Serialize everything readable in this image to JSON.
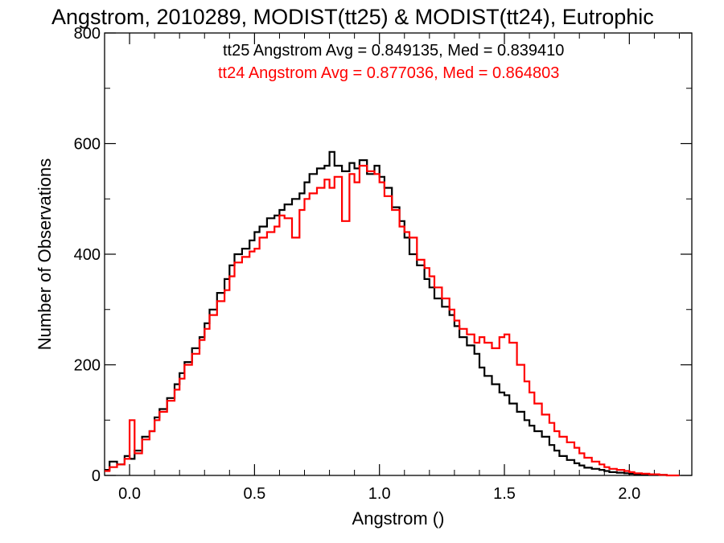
{
  "chart_data": {
    "type": "line",
    "step": true,
    "title": "Angstrom, 2010289, MODIST(tt25) & MODIST(tt24), Eutrophic",
    "xlabel": "Angstrom ()",
    "ylabel": "Number of Observations",
    "xlim": [
      -0.1,
      2.25
    ],
    "ylim": [
      0,
      800
    ],
    "xticks": [
      0.0,
      0.5,
      1.0,
      1.5,
      2.0
    ],
    "xtick_labels": [
      "0.0",
      "0.5",
      "1.0",
      "1.5",
      "2.0"
    ],
    "yticks": [
      0,
      200,
      400,
      600,
      800
    ],
    "ytick_labels": [
      "0",
      "200",
      "400",
      "600",
      "800"
    ],
    "grid": false,
    "annotations": [
      {
        "text": "tt25 Angstrom Avg = 0.849135, Med = 0.839410",
        "color": "#000000"
      },
      {
        "text": "tt24 Angstrom Avg = 0.877036, Med = 0.864803",
        "color": "#ff0000"
      }
    ],
    "series": [
      {
        "color": "#000000",
        "x": [
          -0.1,
          -0.08,
          -0.05,
          -0.02,
          0.0,
          0.02,
          0.05,
          0.08,
          0.1,
          0.12,
          0.15,
          0.18,
          0.2,
          0.22,
          0.25,
          0.28,
          0.3,
          0.32,
          0.35,
          0.38,
          0.4,
          0.42,
          0.45,
          0.48,
          0.5,
          0.52,
          0.55,
          0.58,
          0.6,
          0.62,
          0.65,
          0.68,
          0.7,
          0.72,
          0.75,
          0.78,
          0.8,
          0.82,
          0.85,
          0.88,
          0.9,
          0.92,
          0.95,
          0.98,
          1.0,
          1.02,
          1.05,
          1.08,
          1.1,
          1.12,
          1.15,
          1.18,
          1.2,
          1.22,
          1.25,
          1.28,
          1.3,
          1.32,
          1.35,
          1.38,
          1.4,
          1.42,
          1.45,
          1.48,
          1.5,
          1.52,
          1.55,
          1.58,
          1.6,
          1.62,
          1.65,
          1.68,
          1.7,
          1.72,
          1.75,
          1.78,
          1.8,
          1.82,
          1.85,
          1.88,
          1.9,
          1.92,
          1.95,
          1.98,
          2.0,
          2.02,
          2.05,
          2.08,
          2.1,
          2.12,
          2.15
        ],
        "y": [
          10,
          25,
          20,
          35,
          30,
          45,
          70,
          80,
          105,
          120,
          140,
          165,
          185,
          205,
          230,
          250,
          275,
          300,
          330,
          355,
          380,
          400,
          410,
          425,
          440,
          450,
          465,
          470,
          480,
          490,
          500,
          510,
          530,
          545,
          555,
          560,
          585,
          560,
          550,
          565,
          555,
          570,
          545,
          560,
          540,
          520,
          485,
          460,
          430,
          400,
          380,
          355,
          340,
          320,
          305,
          290,
          270,
          250,
          235,
          220,
          195,
          180,
          165,
          150,
          145,
          130,
          115,
          100,
          90,
          80,
          70,
          55,
          45,
          35,
          28,
          22,
          18,
          14,
          12,
          10,
          8,
          6,
          5,
          4,
          3,
          2,
          2,
          1,
          1,
          1,
          0
        ]
      },
      {
        "color": "#ff0000",
        "x": [
          -0.1,
          -0.08,
          -0.05,
          -0.02,
          0.0,
          0.02,
          0.05,
          0.08,
          0.1,
          0.12,
          0.15,
          0.18,
          0.2,
          0.22,
          0.25,
          0.28,
          0.3,
          0.32,
          0.35,
          0.38,
          0.4,
          0.42,
          0.45,
          0.48,
          0.5,
          0.52,
          0.55,
          0.58,
          0.6,
          0.62,
          0.65,
          0.68,
          0.7,
          0.72,
          0.75,
          0.78,
          0.8,
          0.82,
          0.85,
          0.88,
          0.9,
          0.92,
          0.95,
          0.98,
          1.0,
          1.02,
          1.05,
          1.08,
          1.1,
          1.12,
          1.15,
          1.18,
          1.2,
          1.22,
          1.25,
          1.28,
          1.3,
          1.32,
          1.35,
          1.38,
          1.4,
          1.42,
          1.45,
          1.48,
          1.5,
          1.52,
          1.55,
          1.58,
          1.6,
          1.62,
          1.65,
          1.68,
          1.7,
          1.72,
          1.75,
          1.78,
          1.8,
          1.82,
          1.85,
          1.88,
          1.9,
          1.92,
          1.95,
          1.98,
          2.0,
          2.02,
          2.05,
          2.08,
          2.1,
          2.12,
          2.15,
          2.2
        ],
        "y": [
          8,
          15,
          20,
          30,
          100,
          40,
          65,
          80,
          100,
          115,
          135,
          155,
          175,
          200,
          220,
          245,
          265,
          290,
          315,
          335,
          360,
          385,
          395,
          405,
          410,
          430,
          440,
          450,
          470,
          465,
          430,
          480,
          500,
          510,
          520,
          535,
          520,
          540,
          460,
          545,
          530,
          560,
          550,
          545,
          530,
          505,
          480,
          450,
          440,
          430,
          390,
          375,
          360,
          340,
          320,
          300,
          280,
          265,
          255,
          240,
          250,
          240,
          230,
          250,
          255,
          240,
          200,
          170,
          150,
          130,
          110,
          95,
          80,
          70,
          60,
          50,
          40,
          32,
          25,
          20,
          15,
          12,
          10,
          8,
          6,
          4,
          3,
          2,
          2,
          1,
          0,
          0
        ]
      }
    ]
  }
}
